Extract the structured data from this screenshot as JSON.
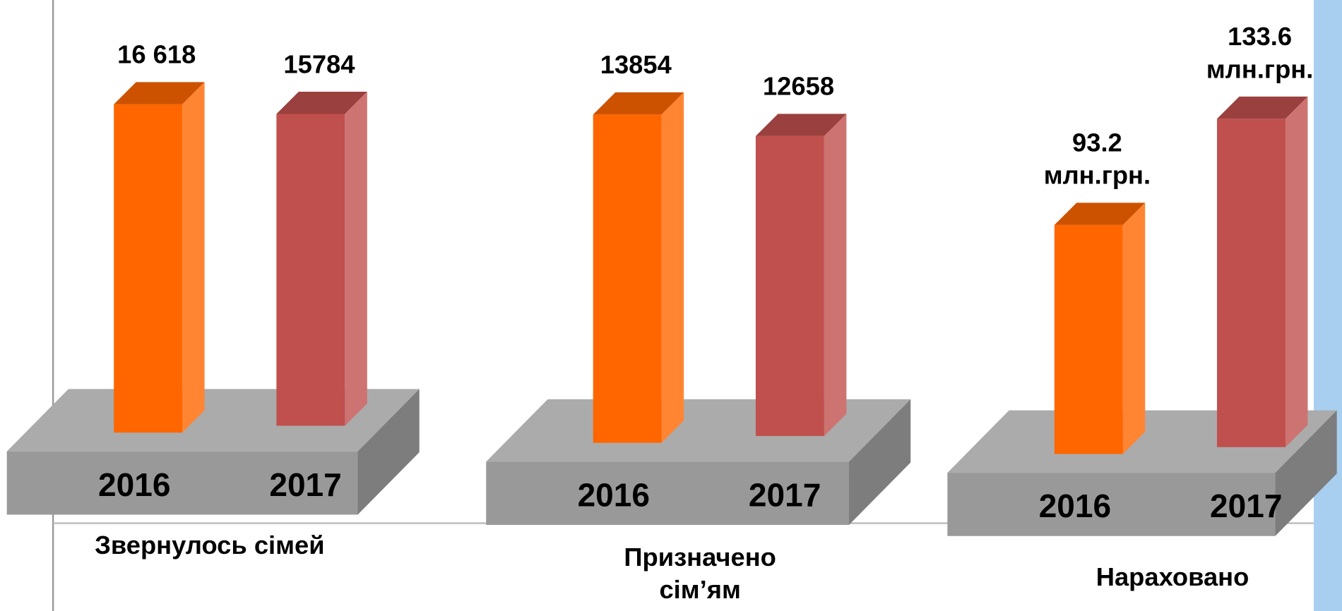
{
  "chart_data": [
    {
      "type": "bar3d",
      "title": "Звернулось сімей",
      "categories": [
        "2016",
        "2017"
      ],
      "values": [
        16618,
        15784
      ],
      "value_labels": [
        "16 618",
        "15784"
      ],
      "colors": [
        "#ff6600",
        "#c0504d"
      ]
    },
    {
      "type": "bar3d",
      "title": "Призначено\nсім’ям",
      "categories": [
        "2016",
        "2017"
      ],
      "values": [
        13854,
        12658
      ],
      "colors": [
        "#ff6600",
        "#c0504d"
      ]
    },
    {
      "type": "bar3d",
      "title": "Нараховано",
      "categories": [
        "2016",
        "2017"
      ],
      "values": [
        93.2,
        133.6
      ],
      "value_labels": [
        "93.2\nмлн.грн.",
        "133.6\nмлн.грн."
      ],
      "colors": [
        "#ff6600",
        "#c0504d"
      ]
    }
  ]
}
